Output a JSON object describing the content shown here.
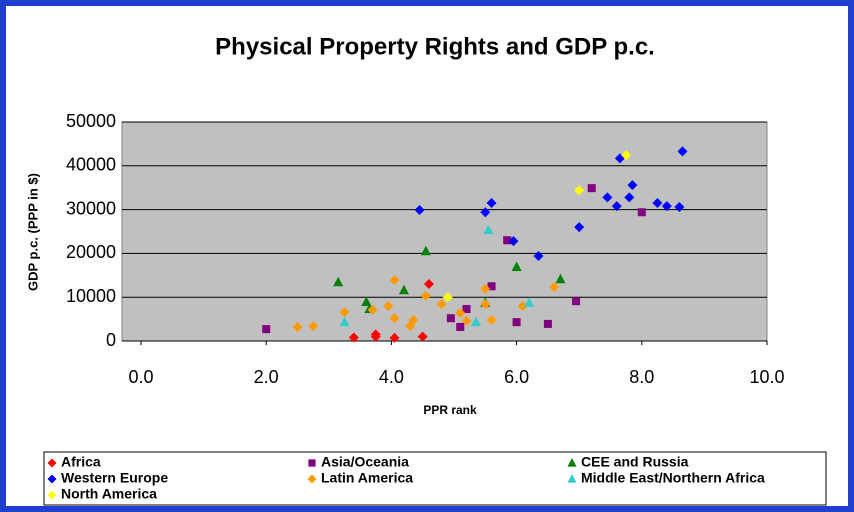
{
  "chart_data": {
    "type": "scatter",
    "title": "Physical Property Rights and GDP p.c.",
    "x_label": "PPR rank",
    "y_label": "GDP p.c. (PPP in $)",
    "xlim": [
      0,
      10
    ],
    "ylim": [
      0,
      50000
    ],
    "xticks": [
      {
        "value": 0,
        "label": "0.0"
      },
      {
        "value": 2,
        "label": "2.0"
      },
      {
        "value": 4,
        "label": "4.0"
      },
      {
        "value": 6,
        "label": "6.0"
      },
      {
        "value": 8,
        "label": "8.0"
      },
      {
        "value": 10,
        "label": "10.0"
      }
    ],
    "yticks": [
      0,
      10000,
      20000,
      30000,
      40000,
      50000
    ],
    "grid": true,
    "series": [
      {
        "name": "Africa",
        "color": "#ff0000",
        "marker": "diamond",
        "x": [
          3.4,
          3.75,
          3.75,
          4.05,
          4.5,
          4.6
        ],
        "values": [
          800,
          1500,
          1000,
          700,
          1000,
          13000
        ]
      },
      {
        "name": "Asia/Oceania",
        "color": "#800080",
        "marker": "square",
        "x": [
          2.0,
          4.95,
          5.1,
          5.2,
          5.6,
          5.85,
          6.0,
          6.5,
          6.95,
          7.2,
          8.0
        ],
        "values": [
          2700,
          5200,
          3200,
          7300,
          12500,
          23000,
          4300,
          3900,
          9100,
          34900,
          29400
        ]
      },
      {
        "name": "CEE and Russia",
        "color": "#008000",
        "marker": "triangle",
        "x": [
          3.15,
          3.6,
          3.65,
          4.2,
          4.55,
          5.5,
          6.0,
          6.7
        ],
        "values": [
          13400,
          8900,
          7300,
          11600,
          20500,
          8700,
          16900,
          14100
        ]
      },
      {
        "name": "Western Europe",
        "color": "#0000ff",
        "marker": "diamond",
        "x": [
          4.45,
          5.5,
          5.6,
          5.95,
          6.35,
          7.0,
          7.45,
          7.6,
          7.65,
          7.8,
          7.85,
          8.25,
          8.4,
          8.6,
          8.65
        ],
        "values": [
          29900,
          29400,
          31500,
          22800,
          19400,
          26000,
          32800,
          30800,
          41700,
          32800,
          35600,
          31500,
          30800,
          30600,
          43300
        ]
      },
      {
        "name": "Latin America",
        "color": "#ff9900",
        "marker": "diamond",
        "x": [
          2.5,
          2.75,
          3.25,
          3.7,
          3.95,
          4.05,
          4.05,
          4.3,
          4.35,
          4.55,
          4.8,
          5.1,
          5.2,
          5.5,
          5.5,
          5.6,
          6.1,
          6.6
        ],
        "values": [
          3200,
          3400,
          6600,
          7100,
          8000,
          5200,
          13900,
          3400,
          4800,
          10300,
          8400,
          6400,
          4600,
          8400,
          11900,
          4800,
          8000,
          12300
        ]
      },
      {
        "name": "Middle East/Northern Africa",
        "color": "#33cccc",
        "marker": "triangle",
        "x": [
          3.25,
          5.35,
          5.55,
          6.2
        ],
        "values": [
          4300,
          4300,
          25300,
          8700
        ]
      },
      {
        "name": "North America",
        "color": "#ffff00",
        "marker": "diamond",
        "x": [
          4.9,
          7.0,
          7.75
        ],
        "values": [
          10000,
          34400,
          42400
        ]
      }
    ]
  }
}
